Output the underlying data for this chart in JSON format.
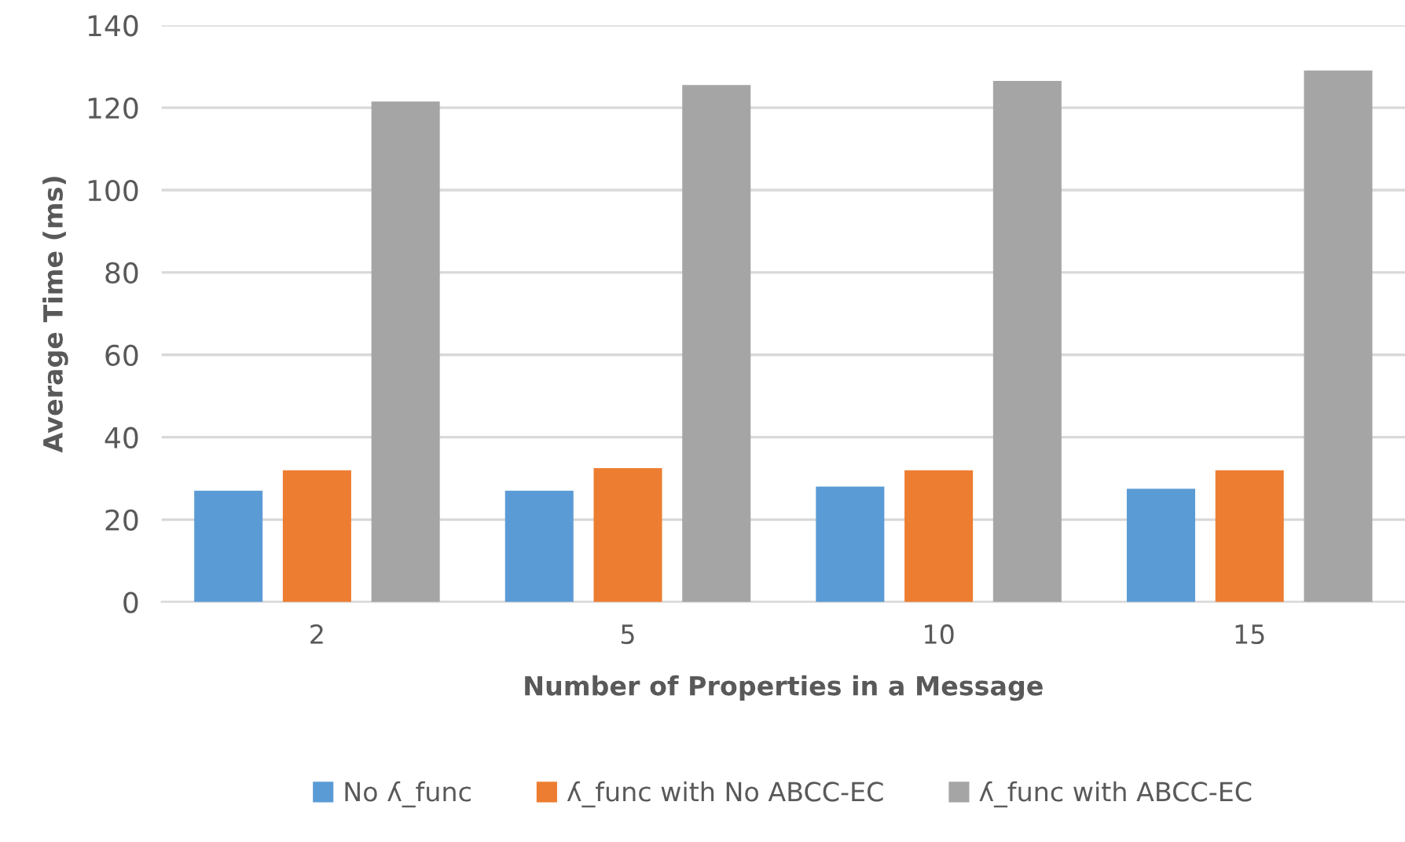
{
  "chart_data": {
    "type": "bar",
    "xlabel": "Number of Properties in a Message",
    "ylabel": "Average Time (ms)",
    "categories": [
      "2",
      "5",
      "10",
      "15"
    ],
    "series": [
      {
        "name": "No ʎ_func",
        "color": "#5b9bd5",
        "values": [
          27,
          27,
          28,
          27.5
        ]
      },
      {
        "name": "ʎ_func with No ABCC-EC",
        "color": "#ed7d31",
        "values": [
          32,
          32.5,
          32,
          32
        ]
      },
      {
        "name": "ʎ_func with ABCC-EC",
        "color": "#a5a5a5",
        "values": [
          121.5,
          125.5,
          126.5,
          129
        ]
      }
    ],
    "ylim": [
      0,
      140
    ],
    "yticks": [
      0,
      20,
      40,
      60,
      80,
      100,
      120,
      140
    ],
    "grid": "y",
    "legend": "bottom"
  }
}
